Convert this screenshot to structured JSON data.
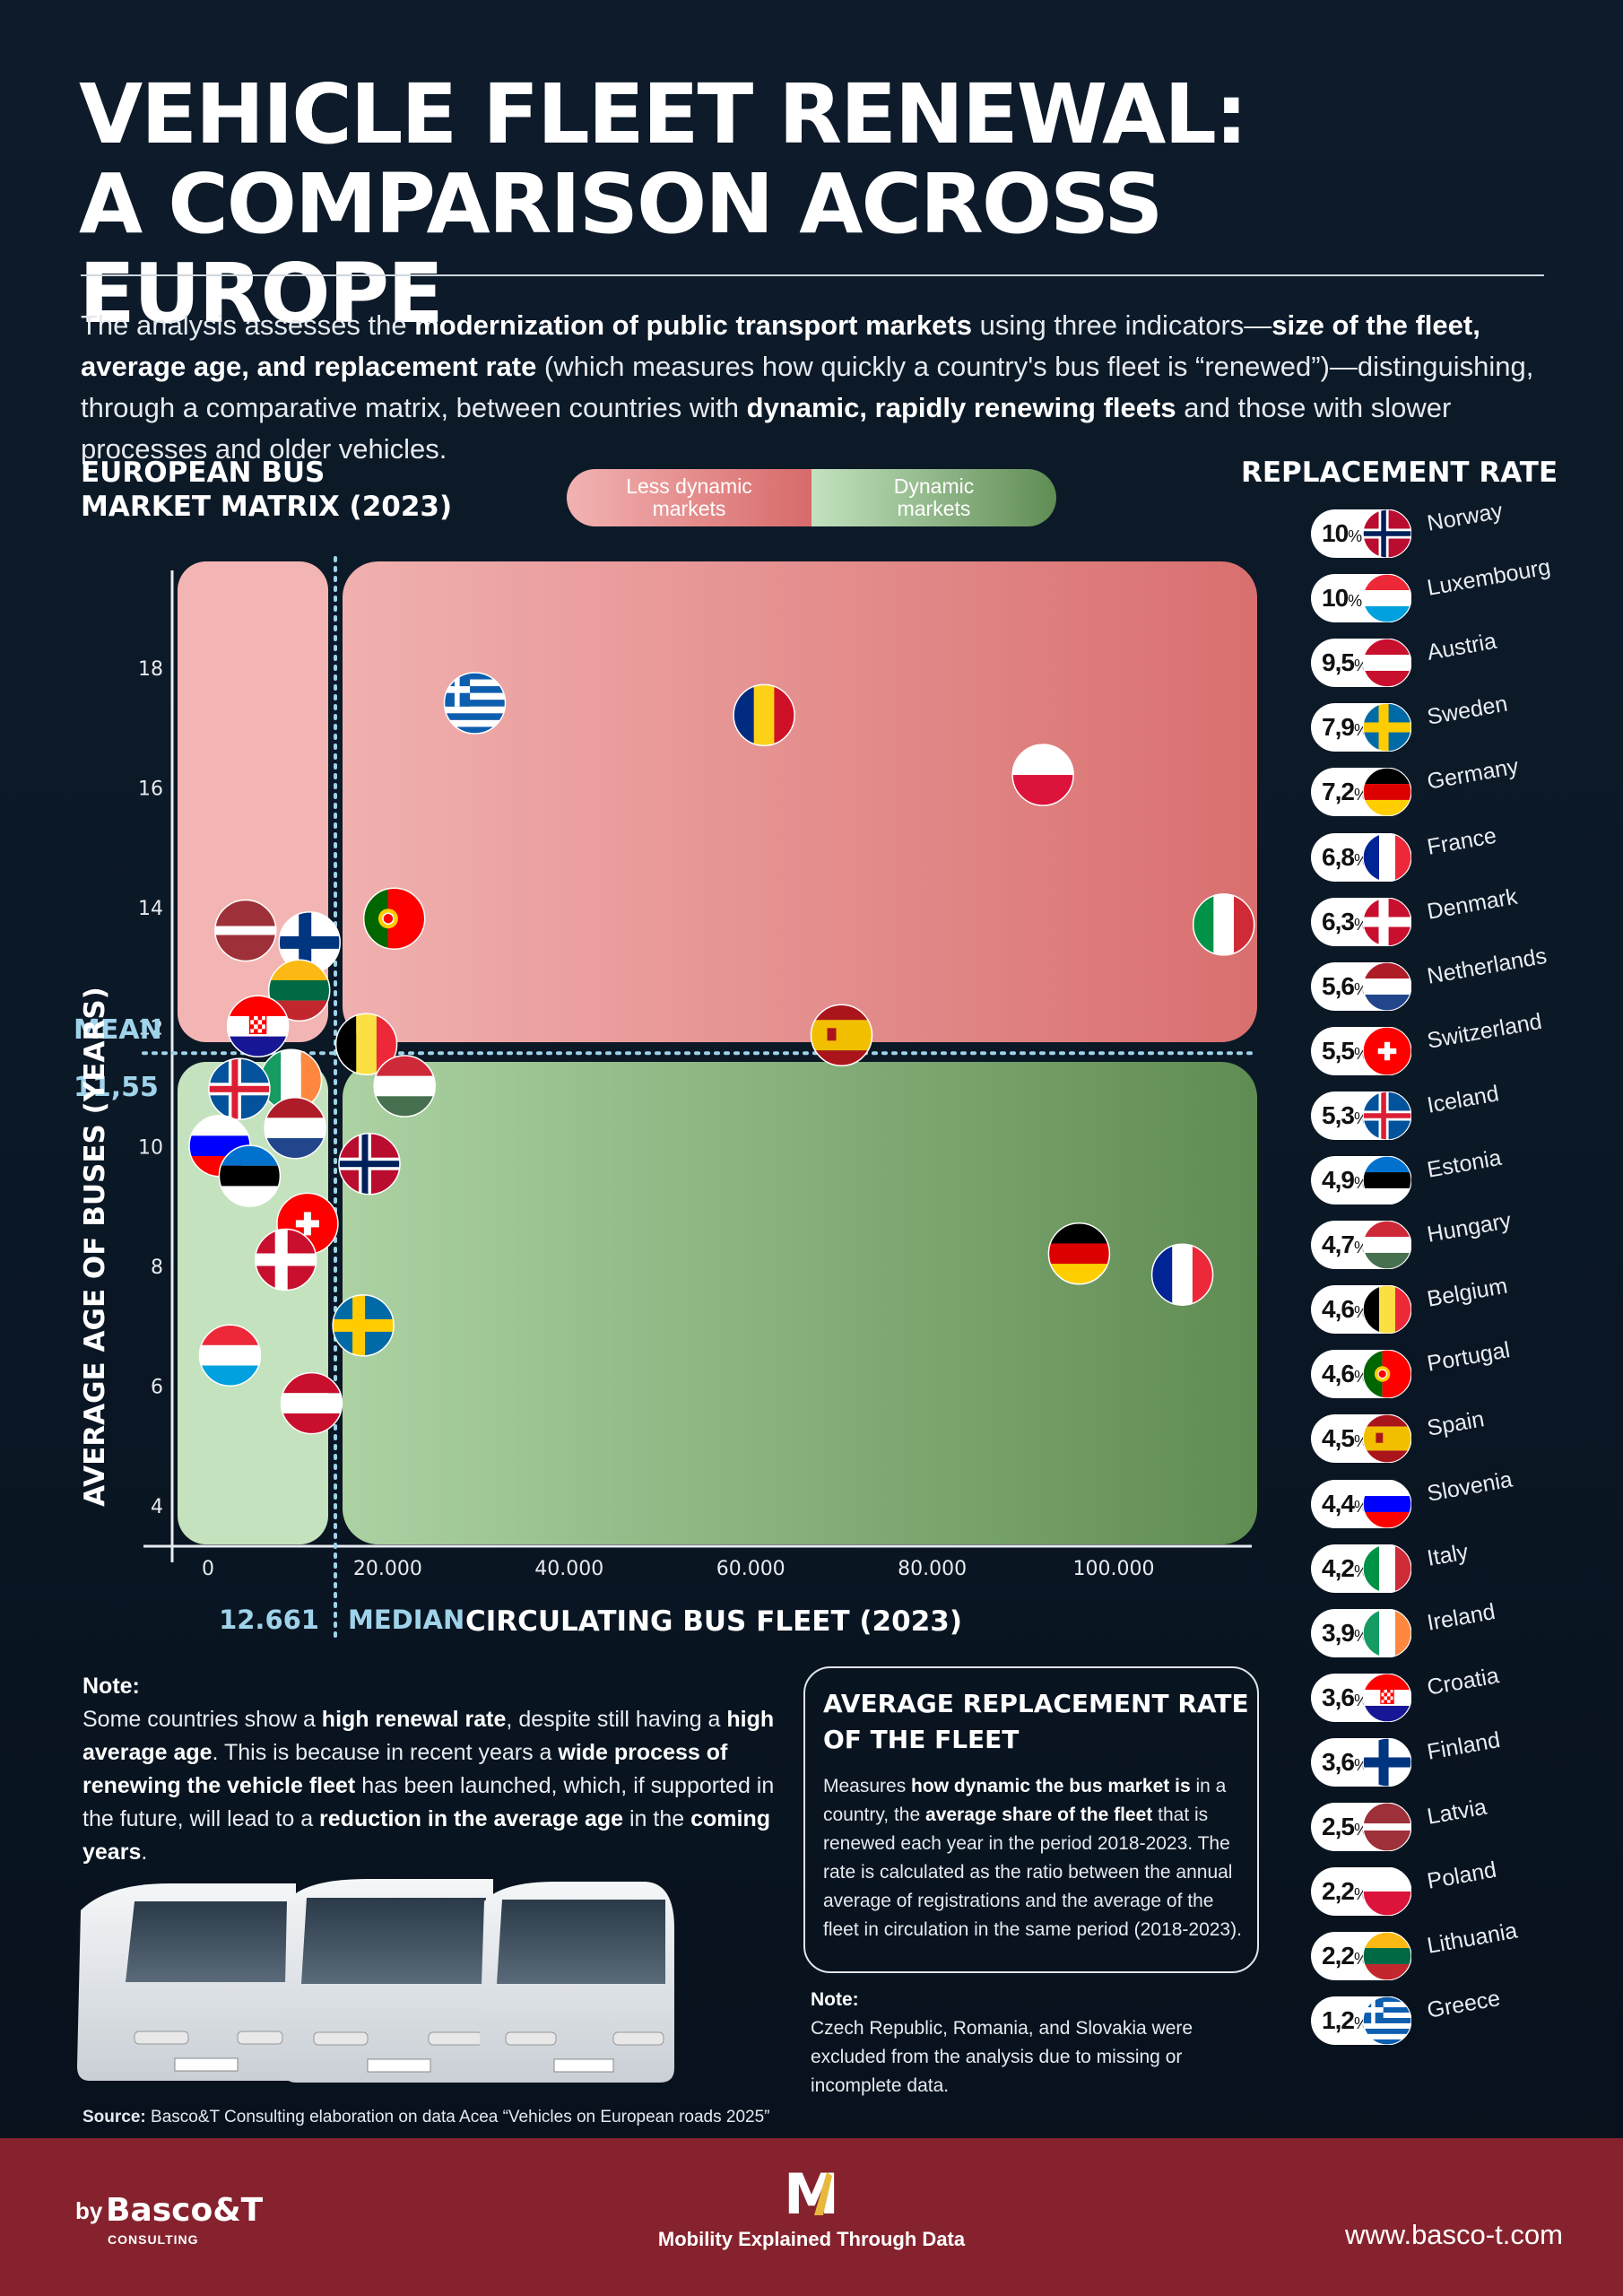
{
  "title": {
    "line1": "VEHICLE FLEET RENEWAL:",
    "line2": "A COMPARISON ACROSS EUROPE"
  },
  "intro": {
    "p1": "The analysis assesses the ",
    "b1": "modernization of public transport markets",
    "p2": " using three indicators—",
    "b2": "size of the fleet, average age, and replacement rate",
    "p3": " (which measures how quickly a country's bus fleet is “renewed”)—distinguishing, through a comparative matrix, between countries with ",
    "b3": "dynamic, rapidly renewing fleets",
    "p4": " and those with slower processes and older vehicles."
  },
  "matrix_title": {
    "line1": "EUROPEAN BUS",
    "line2": "MARKET MATRIX (2023)"
  },
  "legend": {
    "less_line1": "Less dynamic",
    "less_line2": "markets",
    "dyn_line1": "Dynamic",
    "dyn_line2": "markets"
  },
  "colors": {
    "less_dynamic": "#e08a8a",
    "dynamic": "#7da56f",
    "dotted_line": "#9fd3ea",
    "mean_label": "#9fd3ea"
  },
  "chart_data": {
    "type": "scatter",
    "xlabel": "CIRCULATING BUS FLEET (2023)",
    "ylabel": "AVERAGE AGE OF BUSES (YEARS)",
    "xlim": [
      -3000,
      101000
    ],
    "ylim": [
      3.2,
      19.5
    ],
    "x_ticks": [
      0,
      20000,
      40000,
      60000,
      80000,
      100000
    ],
    "x_tick_labels": [
      "0",
      "20.000",
      "40.000",
      "60.000",
      "80.000",
      "100.000"
    ],
    "y_ticks": [
      4,
      6,
      8,
      10,
      12,
      14,
      16,
      18
    ],
    "y_tick_labels": [
      "4",
      "6",
      "8",
      "10",
      "12",
      "14",
      "16",
      "18"
    ],
    "mean": {
      "value": 11.55,
      "label": "MEAN",
      "value_label": "11,55"
    },
    "median": {
      "value": 12661,
      "label": "MEDIAN",
      "value_label": "12.661"
    },
    "points": [
      {
        "country": "Greece",
        "flag": "gr",
        "x": 26000,
        "y": 17.4
      },
      {
        "country": "Romania",
        "flag": "ro",
        "x": 54000,
        "y": 17.2
      },
      {
        "country": "Poland",
        "flag": "pl",
        "x": 81000,
        "y": 16.2
      },
      {
        "country": "Italy",
        "flag": "it",
        "x": 98500,
        "y": 13.7
      },
      {
        "country": "Portugal",
        "flag": "pt",
        "x": 18200,
        "y": 13.8
      },
      {
        "country": "Latvia",
        "flag": "lv",
        "x": 3800,
        "y": 13.6
      },
      {
        "country": "Finland",
        "flag": "fi",
        "x": 10000,
        "y": 13.4
      },
      {
        "country": "Lithuania",
        "flag": "lt",
        "x": 9000,
        "y": 12.6
      },
      {
        "country": "Croatia",
        "flag": "hr",
        "x": 5000,
        "y": 12.0
      },
      {
        "country": "Spain",
        "flag": "es",
        "x": 61500,
        "y": 11.85
      },
      {
        "country": "Belgium",
        "flag": "be",
        "x": 15500,
        "y": 11.7
      },
      {
        "country": "Ireland",
        "flag": "ie",
        "x": 8200,
        "y": 11.1
      },
      {
        "country": "Hungary",
        "flag": "hu",
        "x": 19200,
        "y": 11.0
      },
      {
        "country": "Iceland",
        "flag": "is",
        "x": 3200,
        "y": 10.95
      },
      {
        "country": "Netherlands",
        "flag": "nl",
        "x": 8600,
        "y": 10.3
      },
      {
        "country": "Slovenia",
        "flag": "si",
        "x": 1300,
        "y": 10.0
      },
      {
        "country": "Estonia",
        "flag": "ee",
        "x": 4200,
        "y": 9.5
      },
      {
        "country": "Norway",
        "flag": "no",
        "x": 15800,
        "y": 9.7
      },
      {
        "country": "Switzerland",
        "flag": "ch",
        "x": 9800,
        "y": 8.7
      },
      {
        "country": "Denmark",
        "flag": "dk",
        "x": 7700,
        "y": 8.1
      },
      {
        "country": "Germany",
        "flag": "de",
        "x": 84500,
        "y": 8.2
      },
      {
        "country": "France",
        "flag": "fr",
        "x": 94500,
        "y": 7.85
      },
      {
        "country": "Sweden",
        "flag": "se",
        "x": 15200,
        "y": 7.0
      },
      {
        "country": "Luxembourg",
        "flag": "lu",
        "x": 2300,
        "y": 6.5
      },
      {
        "country": "Austria",
        "flag": "at",
        "x": 10200,
        "y": 5.7
      }
    ]
  },
  "replacement_rate": {
    "title": "REPLACEMENT RATE",
    "items": [
      {
        "value": "10",
        "country": "Norway",
        "flag": "no"
      },
      {
        "value": "10",
        "country": "Luxembourg",
        "flag": "lu"
      },
      {
        "value": "9,5",
        "country": "Austria",
        "flag": "at"
      },
      {
        "value": "7,9",
        "country": "Sweden",
        "flag": "se"
      },
      {
        "value": "7,2",
        "country": "Germany",
        "flag": "de"
      },
      {
        "value": "6,8",
        "country": "France",
        "flag": "fr"
      },
      {
        "value": "6,3",
        "country": "Denmark",
        "flag": "dk"
      },
      {
        "value": "5,6",
        "country": "Netherlands",
        "flag": "nl"
      },
      {
        "value": "5,5",
        "country": "Switzerland",
        "flag": "ch"
      },
      {
        "value": "5,3",
        "country": "Iceland",
        "flag": "is"
      },
      {
        "value": "4,9",
        "country": "Estonia",
        "flag": "ee"
      },
      {
        "value": "4,7",
        "country": "Hungary",
        "flag": "hu"
      },
      {
        "value": "4,6",
        "country": "Belgium",
        "flag": "be"
      },
      {
        "value": "4,6",
        "country": "Portugal",
        "flag": "pt"
      },
      {
        "value": "4,5",
        "country": "Spain",
        "flag": "es"
      },
      {
        "value": "4,4",
        "country": "Slovenia",
        "flag": "si"
      },
      {
        "value": "4,2",
        "country": "Italy",
        "flag": "it"
      },
      {
        "value": "3,9",
        "country": "Ireland",
        "flag": "ie"
      },
      {
        "value": "3,6",
        "country": "Croatia",
        "flag": "hr"
      },
      {
        "value": "3,6",
        "country": "Finland",
        "flag": "fi"
      },
      {
        "value": "2,5",
        "country": "Latvia",
        "flag": "lv"
      },
      {
        "value": "2,2",
        "country": "Poland",
        "flag": "pl"
      },
      {
        "value": "2,2",
        "country": "Lithuania",
        "flag": "lt"
      },
      {
        "value": "1,2",
        "country": "Greece",
        "flag": "gr"
      }
    ]
  },
  "note1": {
    "heading": "Note:",
    "p1": "Some countries show a ",
    "b1": "high renewal rate",
    "p2": ", despite still having a ",
    "b2": "high average age",
    "p3": ". This is because in recent years a ",
    "b3": "wide process of renewing the vehicle fleet",
    "p4": " has been launched, which, if supported in the future, will lead to a ",
    "b4": "reduction in the average age",
    "p5": " in the ",
    "b5": "coming years",
    "p6": "."
  },
  "avg_box": {
    "title_line1": "AVERAGE REPLACEMENT RATE",
    "title_line2": "OF THE FLEET",
    "p1": "Measures ",
    "b1": "how dynamic the bus market is",
    "p2": " in a country, the ",
    "b2": "average share of the fleet",
    "p3": " that is renewed each year in the period 2018-2023. The rate is calculated as the ratio between the annual average of registrations and the average of the fleet in circulation in the same period (2018-2023)."
  },
  "note2": {
    "heading": "Note:",
    "text": "Czech Republic, Romania, and Slovakia were excluded from the analysis due to missing or incomplete data."
  },
  "source": {
    "label": "Source:",
    "text": " Basco&T Consulting elaboration on data Acea “Vehicles on European roads 2025”"
  },
  "footer": {
    "by": "by",
    "brand": "Basco&T",
    "brand_sub": "CONSULTING",
    "logo_letter": "M",
    "tagline": "Mobility Explained Through Data",
    "website": "www.basco-t.com"
  }
}
